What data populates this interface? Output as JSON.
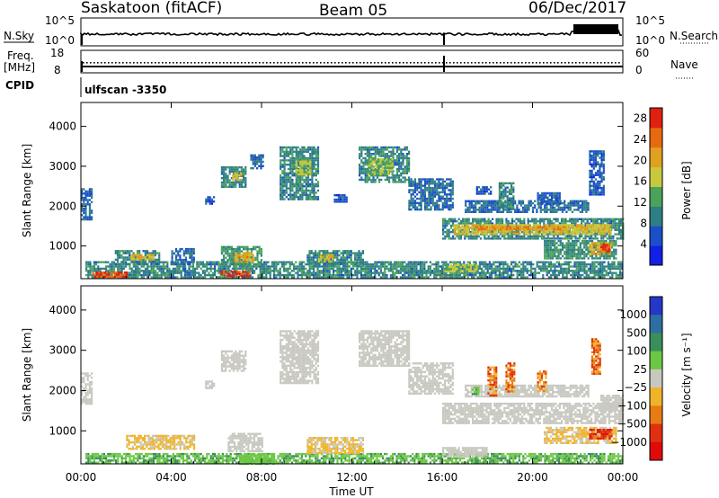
{
  "header": {
    "station": "Saskatoon (fitACF)",
    "beam": "Beam 05",
    "date": "06/Dec/2017"
  },
  "top_panels": {
    "nsky_label": "N.Sky",
    "nsky_ticks": [
      "10^5",
      "10^0"
    ],
    "nsearch_label": "N.Search",
    "nsearch_ticks": [
      "10^5",
      "10^0"
    ],
    "freq_label": "Freq.",
    "freq_unit": "[MHz]",
    "freq_ticks": [
      "18",
      "8"
    ],
    "nave_label": "Nave",
    "nave_ticks": [
      "60",
      "0"
    ],
    "cpid_label": "CPID",
    "cpid_value": "ulfscan -3350"
  },
  "chart_data": [
    {
      "type": "heatmap",
      "name": "power",
      "ylabel": "Slant Range [km]",
      "xlabel": "Time UT",
      "x_ticks": [
        "00:00",
        "04:00",
        "08:00",
        "12:00",
        "16:00",
        "20:00",
        "00:00"
      ],
      "xlim_hours": [
        0,
        24
      ],
      "y_ticks": [
        "1000",
        "2000",
        "3000",
        "4000"
      ],
      "ylim": [
        180,
        4600
      ],
      "colorbar_label": "Power [dB]",
      "colorbar_ticks": [
        "4",
        "8",
        "12",
        "16",
        "20",
        "24",
        "28"
      ],
      "colorbar_colors": [
        "#1020e6",
        "#1a4fc8",
        "#2e7e86",
        "#4aa35a",
        "#c8c83c",
        "#e0a020",
        "#e86a10",
        "#e02010"
      ],
      "colorbar_range": [
        0,
        30
      ],
      "regions": [
        {
          "t0": 0.0,
          "t1": 0.5,
          "r0": 1650,
          "r1": 2450,
          "level": 7
        },
        {
          "t0": 0.2,
          "t1": 24.0,
          "r0": 200,
          "r1": 620,
          "level": 10
        },
        {
          "t0": 0.5,
          "t1": 2.0,
          "r0": 230,
          "r1": 360,
          "level": 27
        },
        {
          "t0": 1.5,
          "t1": 3.5,
          "r0": 550,
          "r1": 900,
          "level": 10
        },
        {
          "t0": 2.2,
          "t1": 3.2,
          "r0": 650,
          "r1": 800,
          "level": 18
        },
        {
          "t0": 4.0,
          "t1": 5.0,
          "r0": 550,
          "r1": 950,
          "level": 8
        },
        {
          "t0": 5.5,
          "t1": 5.9,
          "r0": 2050,
          "r1": 2250,
          "level": 6
        },
        {
          "t0": 6.2,
          "t1": 7.3,
          "r0": 2500,
          "r1": 3000,
          "level": 10
        },
        {
          "t0": 6.7,
          "t1": 7.1,
          "r0": 2650,
          "r1": 2850,
          "level": 18
        },
        {
          "t0": 6.2,
          "t1": 8.0,
          "r0": 500,
          "r1": 1000,
          "level": 12
        },
        {
          "t0": 6.8,
          "t1": 7.6,
          "r0": 600,
          "r1": 850,
          "level": 20
        },
        {
          "t0": 6.2,
          "t1": 7.5,
          "r0": 230,
          "r1": 380,
          "level": 27
        },
        {
          "t0": 7.5,
          "t1": 8.1,
          "r0": 2950,
          "r1": 3300,
          "level": 8
        },
        {
          "t0": 8.8,
          "t1": 10.5,
          "r0": 2200,
          "r1": 3500,
          "level": 10
        },
        {
          "t0": 9.5,
          "t1": 10.2,
          "r0": 2800,
          "r1": 3200,
          "level": 16
        },
        {
          "t0": 10.0,
          "t1": 12.5,
          "r0": 500,
          "r1": 900,
          "level": 10
        },
        {
          "t0": 10.5,
          "t1": 11.2,
          "r0": 600,
          "r1": 800,
          "level": 17
        },
        {
          "t0": 11.2,
          "t1": 11.8,
          "r0": 2100,
          "r1": 2300,
          "level": 6
        },
        {
          "t0": 12.3,
          "t1": 14.5,
          "r0": 2600,
          "r1": 3500,
          "level": 10
        },
        {
          "t0": 12.7,
          "t1": 13.8,
          "r0": 2800,
          "r1": 3200,
          "level": 15
        },
        {
          "t0": 14.5,
          "t1": 16.5,
          "r0": 1900,
          "r1": 2700,
          "level": 8
        },
        {
          "t0": 16.0,
          "t1": 24.0,
          "r0": 1200,
          "r1": 1700,
          "level": 10
        },
        {
          "t0": 16.5,
          "t1": 23.5,
          "r0": 1300,
          "r1": 1550,
          "level": 18
        },
        {
          "t0": 17.5,
          "t1": 21.5,
          "r0": 1400,
          "r1": 1500,
          "level": 23
        },
        {
          "t0": 17.0,
          "t1": 22.5,
          "r0": 1850,
          "r1": 2150,
          "level": 8
        },
        {
          "t0": 17.5,
          "t1": 18.2,
          "r0": 2300,
          "r1": 2500,
          "level": 6
        },
        {
          "t0": 18.5,
          "t1": 19.2,
          "r0": 1900,
          "r1": 2600,
          "level": 10
        },
        {
          "t0": 20.2,
          "t1": 21.2,
          "r0": 2050,
          "r1": 2350,
          "level": 7
        },
        {
          "t0": 20.5,
          "t1": 23.7,
          "r0": 700,
          "r1": 1150,
          "level": 11
        },
        {
          "t0": 22.5,
          "t1": 23.5,
          "r0": 800,
          "r1": 1100,
          "level": 20
        },
        {
          "t0": 23.0,
          "t1": 23.4,
          "r0": 850,
          "r1": 1050,
          "level": 27
        },
        {
          "t0": 22.5,
          "t1": 23.2,
          "r0": 2300,
          "r1": 3400,
          "level": 6
        },
        {
          "t0": 16.0,
          "t1": 17.5,
          "r0": 350,
          "r1": 550,
          "level": 16
        }
      ]
    },
    {
      "type": "heatmap",
      "name": "velocity",
      "ylabel": "Slant Range [km]",
      "xlabel": "Time UT",
      "x_ticks": [
        "00:00",
        "04:00",
        "08:00",
        "12:00",
        "16:00",
        "20:00",
        "00:00"
      ],
      "xlim_hours": [
        0,
        24
      ],
      "y_ticks": [
        "1000",
        "2000",
        "3000",
        "4000"
      ],
      "ylim": [
        180,
        4600
      ],
      "colorbar_label": "Velocity [m s⁻¹]",
      "colorbar_ticks": [
        "1000",
        "500",
        "100",
        "25",
        "−25",
        "−100",
        "−500",
        "−1000"
      ],
      "colorbar_colors": [
        "#2438c8",
        "#2e6ea0",
        "#3a8e5a",
        "#6cc844",
        "#c8c8c0",
        "#f0b428",
        "#e87c14",
        "#e03010",
        "#e00a0a"
      ],
      "regions": [
        {
          "t0": 0.0,
          "t1": 0.5,
          "r0": 1650,
          "r1": 2450,
          "cat": "gray"
        },
        {
          "t0": 0.2,
          "t1": 24.0,
          "r0": 200,
          "r1": 450,
          "cat": "green"
        },
        {
          "t0": 2.0,
          "t1": 5.0,
          "r0": 550,
          "r1": 900,
          "cat": "lightorange"
        },
        {
          "t0": 5.5,
          "t1": 5.9,
          "r0": 2050,
          "r1": 2250,
          "cat": "gray"
        },
        {
          "t0": 6.2,
          "t1": 7.3,
          "r0": 2500,
          "r1": 3000,
          "cat": "gray"
        },
        {
          "t0": 6.5,
          "t1": 8.0,
          "r0": 500,
          "r1": 950,
          "cat": "gray"
        },
        {
          "t0": 7.0,
          "t1": 8.5,
          "r0": 200,
          "r1": 420,
          "cat": "brightgreen"
        },
        {
          "t0": 8.8,
          "t1": 10.5,
          "r0": 2200,
          "r1": 3500,
          "cat": "gray"
        },
        {
          "t0": 10.0,
          "t1": 12.5,
          "r0": 450,
          "r1": 850,
          "cat": "lightorange"
        },
        {
          "t0": 12.3,
          "t1": 14.5,
          "r0": 2600,
          "r1": 3500,
          "cat": "gray"
        },
        {
          "t0": 14.5,
          "t1": 16.5,
          "r0": 1900,
          "r1": 2700,
          "cat": "gray"
        },
        {
          "t0": 16.0,
          "t1": 24.0,
          "r0": 1200,
          "r1": 1700,
          "cat": "gray"
        },
        {
          "t0": 17.0,
          "t1": 22.5,
          "r0": 1850,
          "r1": 2150,
          "cat": "gray"
        },
        {
          "t0": 23.0,
          "t1": 24.0,
          "r0": 1500,
          "r1": 1900,
          "cat": "gray"
        },
        {
          "t0": 18.0,
          "t1": 18.4,
          "r0": 1900,
          "r1": 2600,
          "cat": "orange"
        },
        {
          "t0": 18.8,
          "t1": 19.2,
          "r0": 2000,
          "r1": 2700,
          "cat": "orange"
        },
        {
          "t0": 20.2,
          "t1": 20.6,
          "r0": 2000,
          "r1": 2500,
          "cat": "orange"
        },
        {
          "t0": 17.3,
          "t1": 17.6,
          "r0": 1900,
          "r1": 2100,
          "cat": "green"
        },
        {
          "t0": 22.6,
          "t1": 23.0,
          "r0": 2400,
          "r1": 3300,
          "cat": "orange"
        },
        {
          "t0": 20.5,
          "t1": 23.7,
          "r0": 700,
          "r1": 1100,
          "cat": "lightorange"
        },
        {
          "t0": 22.5,
          "t1": 23.5,
          "r0": 800,
          "r1": 1050,
          "cat": "red"
        },
        {
          "t0": 16.0,
          "t1": 18.0,
          "r0": 350,
          "r1": 600,
          "cat": "gray"
        }
      ]
    }
  ]
}
